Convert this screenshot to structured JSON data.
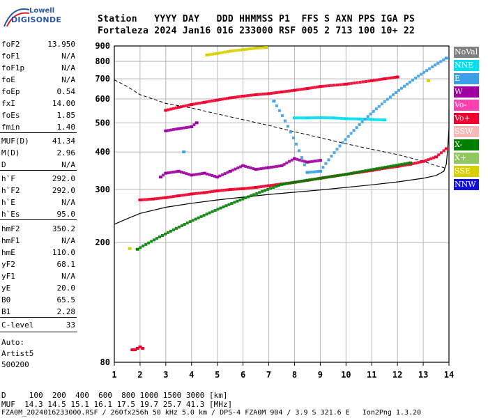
{
  "logo": {
    "line1": "Lowell",
    "line2": "DIGISONDE"
  },
  "header": {
    "line1": "Station   YYYY DAY   DDD HHMMSS P1  FFS S AXN PPS IGA PS",
    "line2": "Fortaleza 2024 Jan16 016 233000 RSF 005 2 713 100 10+ 22"
  },
  "params": [
    {
      "k": "foF2",
      "v": "13.950"
    },
    {
      "k": "foF1",
      "v": "N/A"
    },
    {
      "k": "foF1p",
      "v": "N/A"
    },
    {
      "k": "foE",
      "v": "N/A"
    },
    {
      "k": "foEp",
      "v": "0.54"
    },
    {
      "k": "fxI",
      "v": "14.00"
    },
    {
      "k": "foEs",
      "v": "1.85"
    },
    {
      "k": "fmin",
      "v": "1.40"
    },
    {
      "k": "MUF(D)",
      "v": "41.34"
    },
    {
      "k": "M(D)",
      "v": "2.96"
    },
    {
      "k": "D",
      "v": "N/A"
    },
    {
      "k": "h`F",
      "v": "292.0"
    },
    {
      "k": "h`F2",
      "v": "292.0"
    },
    {
      "k": "h`E",
      "v": "N/A"
    },
    {
      "k": "h`Es",
      "v": "95.0"
    },
    {
      "k": "hmF2",
      "v": "350.2"
    },
    {
      "k": "hmF1",
      "v": "N/A"
    },
    {
      "k": "hmE",
      "v": "110.0"
    },
    {
      "k": "yF2",
      "v": "68.1"
    },
    {
      "k": "yF1",
      "v": "N/A"
    },
    {
      "k": "yE",
      "v": "20.0"
    },
    {
      "k": "B0",
      "v": "65.5"
    },
    {
      "k": "B1",
      "v": "2.28"
    },
    {
      "k": "C-level",
      "v": "33"
    }
  ],
  "autoscale": {
    "line1": "Auto:",
    "line2": "Artist5",
    "line3": "500200"
  },
  "legend": [
    {
      "label": "NoVal",
      "color": "#808080"
    },
    {
      "label": "NNE",
      "color": "#00e0f0"
    },
    {
      "label": "E",
      "color": "#3ca0e8"
    },
    {
      "label": "W",
      "color": "#a000a0"
    },
    {
      "label": "Vo-",
      "color": "#ff40b0"
    },
    {
      "label": "Vo+",
      "color": "#f0002c"
    },
    {
      "label": "SSW",
      "color": "#f8b8b8"
    },
    {
      "label": "X-",
      "color": "#008000"
    },
    {
      "label": "X+",
      "color": "#90c860"
    },
    {
      "label": "SSE",
      "color": "#d8d000"
    },
    {
      "label": "NNW",
      "color": "#1010d8"
    }
  ],
  "footer": {
    "d_row": "D     100  200  400  600  800 1000 1500 3000 [km]",
    "muf_row": "MUF  14.3 14.5 15.1 16.1 17.5 19.7 25.7 41.3 [MHz]",
    "file_row": "FZA0M_2024016233000.RSF / 260fx256h 50 kHz 5.0 km / DPS-4 FZA0M 904 / 3.9 S 321.6 E   Ion2Png 1.3.20"
  },
  "chart_data": {
    "type": "scatter",
    "xlabel": "",
    "ylabel": "",
    "xlim": [
      1,
      14
    ],
    "ylim": [
      80,
      900
    ],
    "x_ticks": [
      1,
      2,
      3,
      4,
      5,
      6,
      7,
      8,
      9,
      10,
      11,
      12,
      13,
      14
    ],
    "y_ticks": [
      80,
      200,
      300,
      400,
      500,
      600,
      700,
      800,
      900
    ],
    "y_scale": "log",
    "grid": true,
    "legend_position": "right",
    "traces": [
      {
        "name": "O-trace (Vo+)",
        "color": "#f0002c",
        "points": [
          [
            2.0,
            277
          ],
          [
            2.5,
            279
          ],
          [
            3,
            282
          ],
          [
            3.5,
            286
          ],
          [
            4,
            290
          ],
          [
            4.5,
            293
          ],
          [
            5,
            297
          ],
          [
            5.5,
            300
          ],
          [
            6,
            302
          ],
          [
            6.5,
            305
          ],
          [
            7,
            309
          ],
          [
            7.5,
            313
          ],
          [
            8,
            317
          ],
          [
            8.5,
            322
          ],
          [
            9,
            327
          ],
          [
            9.5,
            332
          ],
          [
            10,
            337
          ],
          [
            10.5,
            342
          ],
          [
            11,
            347
          ],
          [
            11.5,
            353
          ],
          [
            12,
            358
          ],
          [
            12.5,
            364
          ],
          [
            13,
            372
          ],
          [
            13.5,
            385
          ],
          [
            13.9,
            410
          ]
        ]
      },
      {
        "name": "2F trace",
        "color": "#f0002c",
        "points": [
          [
            3,
            550
          ],
          [
            3.5,
            563
          ],
          [
            4,
            575
          ],
          [
            4.5,
            585
          ],
          [
            5,
            595
          ],
          [
            5.5,
            605
          ],
          [
            6,
            613
          ],
          [
            6.5,
            620
          ],
          [
            7,
            625
          ],
          [
            7.5,
            633
          ],
          [
            8,
            641
          ],
          [
            8.5,
            650
          ],
          [
            9,
            660
          ],
          [
            10,
            672
          ],
          [
            11,
            690
          ],
          [
            11.5,
            700
          ],
          [
            12,
            710
          ]
        ]
      },
      {
        "name": "E-layer (Es)",
        "color": "#f0002c",
        "points": [
          [
            1.7,
            88
          ],
          [
            1.8,
            88
          ],
          [
            1.9,
            89
          ],
          [
            2.0,
            90
          ],
          [
            2.1,
            89
          ]
        ]
      },
      {
        "name": "Spread W (F)",
        "color": "#a000a0",
        "points": [
          [
            2.8,
            330
          ],
          [
            3,
            340
          ],
          [
            3.5,
            345
          ],
          [
            4,
            335
          ],
          [
            4.5,
            340
          ],
          [
            5,
            330
          ],
          [
            5.5,
            345
          ],
          [
            6,
            360
          ],
          [
            6.5,
            350
          ],
          [
            7,
            355
          ],
          [
            7.5,
            360
          ],
          [
            8,
            380
          ],
          [
            8.5,
            370
          ],
          [
            9,
            375
          ]
        ]
      },
      {
        "name": "W spread (2F)",
        "color": "#a000a0",
        "points": [
          [
            3,
            470
          ],
          [
            3.5,
            478
          ],
          [
            4,
            485
          ],
          [
            4.2,
            500
          ]
        ]
      },
      {
        "name": "Cyan spread",
        "color": "#00e0f0",
        "points": [
          [
            8,
            519
          ],
          [
            8.5,
            519
          ],
          [
            9,
            520
          ],
          [
            9.5,
            519
          ],
          [
            10,
            516
          ],
          [
            10.5,
            515
          ],
          [
            11,
            513
          ],
          [
            11.5,
            511
          ]
        ]
      },
      {
        "name": "3F SSE",
        "color": "#d8d000",
        "points": [
          [
            4.6,
            840
          ],
          [
            5,
            850
          ],
          [
            5.5,
            865
          ],
          [
            6,
            875
          ],
          [
            6.5,
            885
          ],
          [
            6.9,
            890
          ]
        ]
      },
      {
        "name": "SSE dots",
        "color": "#d8d000",
        "points": [
          [
            13.2,
            690
          ],
          [
            1.6,
            191
          ]
        ]
      },
      {
        "name": "X- echoes",
        "color": "#008000",
        "points": [
          [
            1.9,
            190
          ],
          [
            7.5,
            312
          ],
          [
            10,
            337
          ],
          [
            12.5,
            368
          ]
        ]
      },
      {
        "name": "E echoes",
        "color": "#3ca0e8",
        "points": [
          [
            7.2,
            590
          ],
          [
            8.5,
            342
          ],
          [
            9,
            345
          ],
          [
            13.9,
            820
          ],
          [
            3.7,
            400
          ]
        ]
      }
    ],
    "profile_solid": [
      [
        1,
        230
      ],
      [
        1.5,
        240
      ],
      [
        2,
        250
      ],
      [
        3,
        262
      ],
      [
        4,
        270
      ],
      [
        5,
        277
      ],
      [
        6,
        283
      ],
      [
        7,
        289
      ],
      [
        8,
        294
      ],
      [
        9,
        299
      ],
      [
        10,
        305
      ],
      [
        11,
        311
      ],
      [
        12,
        318
      ],
      [
        13,
        327
      ],
      [
        13.5,
        334
      ],
      [
        13.8,
        345
      ],
      [
        13.9,
        365
      ],
      [
        13.95,
        410
      ],
      [
        14.0,
        480
      ],
      [
        14.0,
        555
      ]
    ],
    "model_dashed": [
      [
        1,
        695
      ],
      [
        1.5,
        660
      ],
      [
        2,
        620
      ],
      [
        2.5,
        600
      ],
      [
        3,
        580
      ],
      [
        4,
        560
      ],
      [
        5,
        535
      ],
      [
        6,
        512
      ],
      [
        7,
        490
      ],
      [
        8,
        467
      ],
      [
        9,
        446
      ],
      [
        10,
        426
      ],
      [
        11,
        408
      ],
      [
        12,
        392
      ],
      [
        12.5,
        382
      ],
      [
        13,
        373
      ],
      [
        13.4,
        362
      ],
      [
        13.8,
        355
      ],
      [
        13.9,
        350
      ]
    ]
  }
}
